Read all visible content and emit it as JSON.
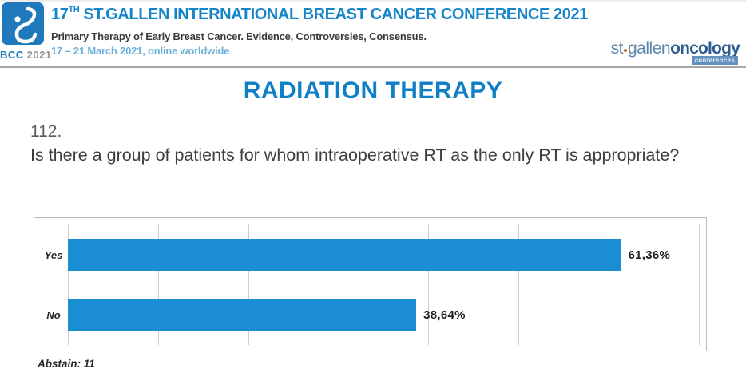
{
  "header": {
    "badge": {
      "bcc": "BCC",
      "year": "2021"
    },
    "title_num": "17",
    "title_sup": "TH",
    "title_rest": " ST.GALLEN INTERNATIONAL BREAST CANCER CONFERENCE 2021",
    "subtitle": "Primary Therapy of Early Breast Cancer. Evidence, Controversies, Consensus.",
    "dates": "17 – 21 March 2021, online worldwide",
    "partner_logo": {
      "st": "st",
      "gallen": "gallen",
      "oncology": "oncology",
      "tag": "conferences"
    }
  },
  "main": {
    "section_title": "RADIATION THERAPY",
    "question_number": "112.",
    "question_text": "Is there a group of patients for whom intraoperative RT as the only RT is appropriate?",
    "abstain_note": "Abstain: 11"
  },
  "colors": {
    "brand_blue": "#1584c8",
    "section_title_blue": "#0f7fc6",
    "dates_light_blue": "#6fb0da",
    "bar_blue": "#1b8ed3",
    "partner_steel_blue": "#2c5c90",
    "partner_dot_orange": "#c95f28"
  },
  "chart_data": {
    "type": "bar",
    "orientation": "horizontal",
    "title": "",
    "categories": [
      "Yes",
      "No"
    ],
    "values": [
      61.36,
      38.64
    ],
    "value_labels": [
      "61,36%",
      "38,64%"
    ],
    "xlabel": "",
    "ylabel": "",
    "xlim": [
      0,
      70
    ],
    "gridline_step": 10,
    "grid": true,
    "legend": false,
    "bar_color": "#1b8ed3",
    "abstain_count": 11
  }
}
